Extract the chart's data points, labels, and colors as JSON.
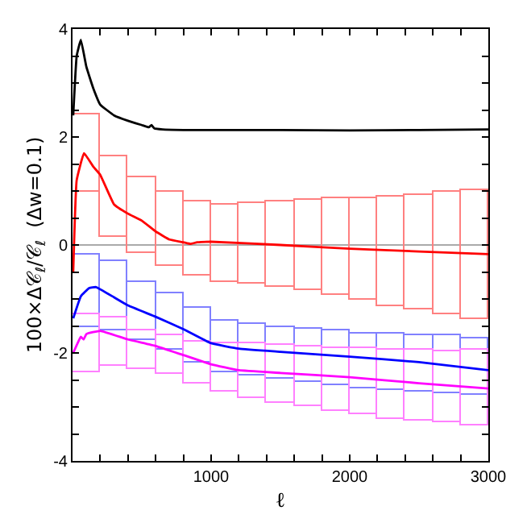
{
  "chart_data": {
    "type": "line",
    "xlabel": "ℓ",
    "ylabel": "100×Δ𝒞$_{ℓ}$/𝒞$_{ℓ}$  (Δw=0.1)",
    "xlim": [
      0,
      3000
    ],
    "ylim": [
      -4,
      4
    ],
    "xticks": [
      {
        "value": 200,
        "label": null
      },
      {
        "value": 400,
        "label": null
      },
      {
        "value": 600,
        "label": null
      },
      {
        "value": 800,
        "label": null
      },
      1000,
      {
        "value": 1200,
        "label": null
      },
      {
        "value": 1400,
        "label": null
      },
      {
        "value": 1600,
        "label": null
      },
      {
        "value": 1800,
        "label": null
      },
      2000,
      {
        "value": 2200,
        "label": null
      },
      {
        "value": 2400,
        "label": null
      },
      {
        "value": 2600,
        "label": null
      },
      {
        "value": 2800,
        "label": null
      },
      3000
    ],
    "yticks": [
      -4,
      {
        "value": -3.5,
        "label": null
      },
      {
        "value": -3,
        "label": null
      },
      {
        "value": -2.5,
        "label": null
      },
      -2,
      {
        "value": -1.5,
        "label": null
      },
      {
        "value": -1,
        "label": null
      },
      {
        "value": -0.5,
        "label": null
      },
      0,
      {
        "value": 0.5,
        "label": null
      },
      {
        "value": 1,
        "label": null
      },
      {
        "value": 1.5,
        "label": null
      },
      2,
      {
        "value": 2.5,
        "label": null
      },
      {
        "value": 3,
        "label": null
      },
      {
        "value": 3.5,
        "label": null
      },
      4
    ],
    "grid": false,
    "marker": "none",
    "line_style": "solid",
    "ref_lines": [
      {
        "axis": "y",
        "value": 0,
        "color": "#aaaaaa"
      }
    ],
    "series": [
      {
        "type": "bar",
        "color": "#ff8080",
        "x": [
          100,
          300,
          500,
          700,
          900,
          1100,
          1300,
          1500,
          1700,
          1900,
          2100,
          2300,
          2500,
          2700,
          2900
        ],
        "base": [
          0.98,
          0.16,
          -0.15,
          -0.39,
          -0.58,
          -0.68,
          -0.73,
          -0.78,
          -0.83,
          -0.93,
          -1.02,
          -1.12,
          -1.2,
          -1.28,
          -1.37
        ],
        "values": [
          1.43,
          1.47,
          1.39,
          1.37,
          1.39,
          1.44,
          1.51,
          1.6,
          1.67,
          1.79,
          1.89,
          2.02,
          2.13,
          2.26,
          2.4
        ]
      },
      {
        "type": "bar",
        "color": "#8080ff",
        "x": [
          100,
          300,
          500,
          700,
          900,
          1100,
          1300,
          1500,
          1700,
          1900,
          2100,
          2300,
          2500,
          2700,
          2900
        ],
        "base": [
          -1.51,
          -1.59,
          -1.76,
          -1.94,
          -2.17,
          -2.37,
          -2.43,
          -2.48,
          -2.54,
          -2.6,
          -2.66,
          -2.68,
          -2.72,
          -2.75,
          -2.79
        ],
        "values": [
          1.34,
          1.28,
          1.08,
          1.03,
          1.0,
          0.96,
          0.96,
          0.97,
          1.0,
          1.01,
          1.03,
          1.04,
          1.06,
          1.07,
          1.07
        ]
      },
      {
        "type": "bar",
        "color": "#ff80ff",
        "x": [
          100,
          300,
          500,
          700,
          900,
          1100,
          1300,
          1500,
          1700,
          1900,
          2100,
          2300,
          2500,
          2700,
          2900
        ],
        "base": [
          -2.35,
          -2.24,
          -2.31,
          -2.4,
          -2.56,
          -2.72,
          -2.85,
          -2.92,
          -2.99,
          -3.08,
          -3.14,
          -3.21,
          -3.26,
          -3.29,
          -3.33
        ],
        "values": [
          1.06,
          0.9,
          0.73,
          0.72,
          0.78,
          0.9,
          1.03,
          1.08,
          1.11,
          1.18,
          1.23,
          1.28,
          1.31,
          1.32,
          1.38
        ]
      },
      {
        "color": "#000000",
        "x": [
          5,
          30,
          60,
          100,
          150,
          200,
          300,
          400,
          500,
          550,
          570,
          590,
          650,
          800,
          1000,
          1500,
          2000,
          2500,
          3000
        ],
        "values": [
          2.4,
          3.5,
          3.8,
          3.3,
          2.9,
          2.6,
          2.4,
          2.3,
          2.22,
          2.18,
          2.22,
          2.16,
          2.14,
          2.13,
          2.13,
          2.13,
          2.12,
          2.13,
          2.14
        ]
      },
      {
        "color": "#ff0000",
        "x": [
          5,
          30,
          83,
          150,
          200,
          300,
          400,
          500,
          600,
          700,
          800,
          850,
          900,
          1000,
          1500,
          2000,
          2500,
          3000
        ],
        "values": [
          -0.5,
          1.2,
          1.7,
          1.45,
          1.3,
          0.75,
          0.58,
          0.45,
          0.25,
          0.1,
          0.05,
          0.02,
          0.05,
          0.06,
          0.0,
          -0.07,
          -0.12,
          -0.17
        ]
      },
      {
        "color": "#0000ff",
        "x": [
          5,
          60,
          120,
          170,
          300,
          400,
          600,
          800,
          1000,
          1200,
          1500,
          2000,
          2500,
          3000
        ],
        "values": [
          -1.36,
          -0.95,
          -0.8,
          -0.78,
          -0.97,
          -1.12,
          -1.33,
          -1.56,
          -1.82,
          -1.92,
          -1.98,
          -2.07,
          -2.17,
          -2.32
        ]
      },
      {
        "color": "#ff00ff",
        "x": [
          5,
          40,
          60,
          80,
          100,
          200,
          400,
          600,
          800,
          1000,
          1200,
          1500,
          2000,
          2500,
          3000
        ],
        "values": [
          -2.0,
          -1.8,
          -1.7,
          -1.75,
          -1.65,
          -1.59,
          -1.75,
          -1.87,
          -2.04,
          -2.21,
          -2.32,
          -2.37,
          -2.45,
          -2.56,
          -2.66
        ]
      }
    ]
  }
}
